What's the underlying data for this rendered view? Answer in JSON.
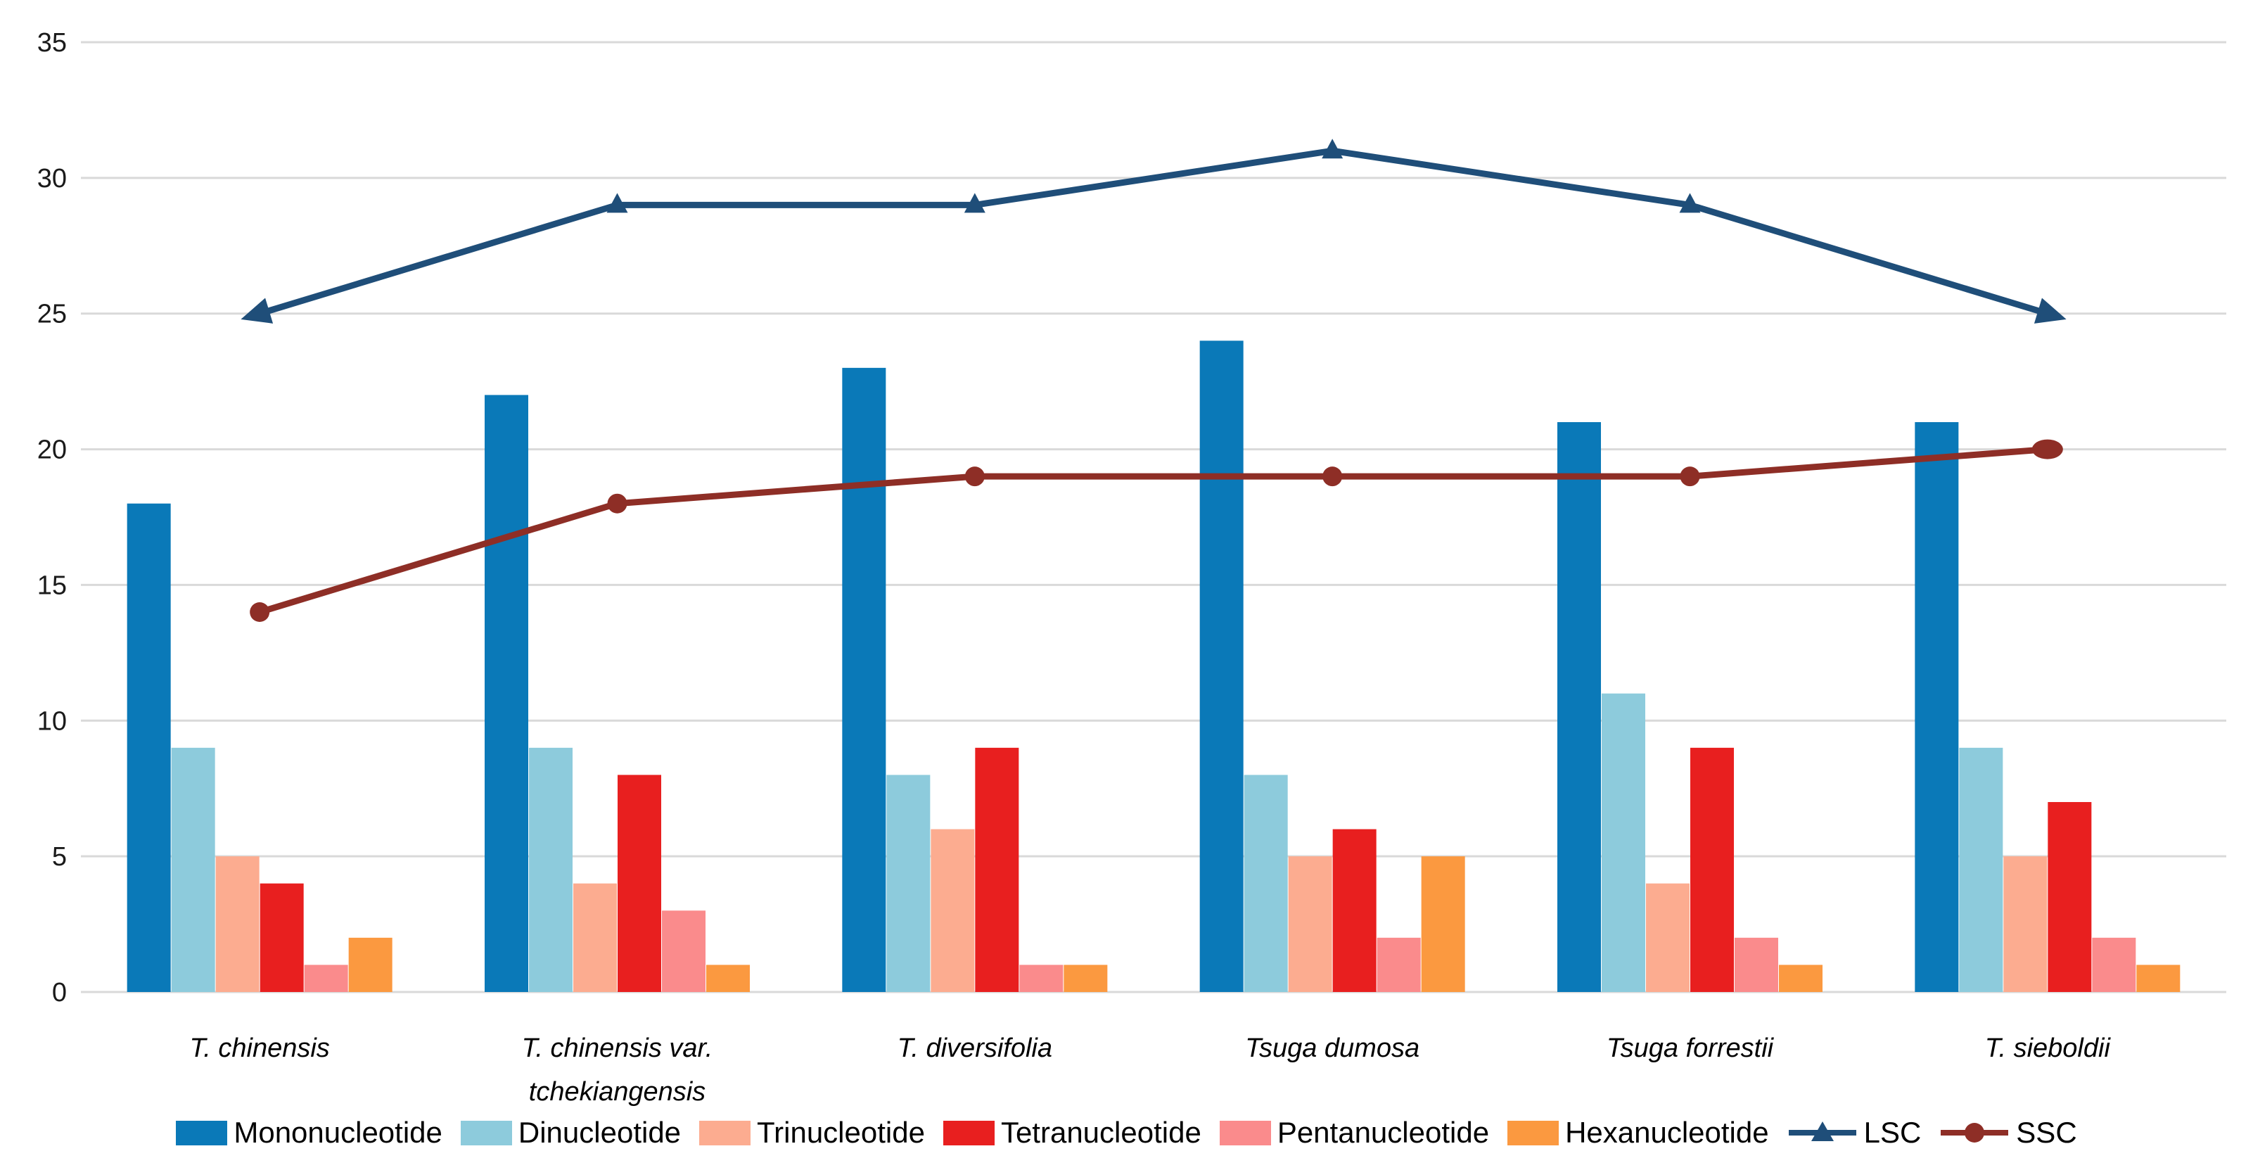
{
  "chart_data": {
    "type": "bar",
    "title": "",
    "xlabel": "",
    "ylabel": "",
    "categories": [
      "T. chinensis",
      "T. chinensis var.\ntchekiangensis",
      "T. diversifolia",
      "Tsuga dumosa",
      "Tsuga forrestii",
      "T. sieboldii"
    ],
    "bar_series": [
      {
        "name": "Mononucleotide",
        "color": "#0A79B8",
        "values": [
          18,
          22,
          23,
          24,
          21,
          21
        ]
      },
      {
        "name": "Dinucleotide",
        "color": "#8DCBDC",
        "values": [
          9,
          9,
          8,
          8,
          11,
          9
        ]
      },
      {
        "name": "Trinucleotide",
        "color": "#FCAC90",
        "values": [
          5,
          4,
          6,
          5,
          4,
          5
        ]
      },
      {
        "name": "Tetranucleotide",
        "color": "#E81F1F",
        "values": [
          4,
          8,
          9,
          6,
          9,
          7
        ]
      },
      {
        "name": "Pentanucleotide",
        "color": "#FA8B8C",
        "values": [
          1,
          3,
          1,
          2,
          2,
          2
        ]
      },
      {
        "name": "Hexanucleotide",
        "color": "#FB9940",
        "values": [
          2,
          1,
          1,
          5,
          1,
          1
        ]
      }
    ],
    "line_series": [
      {
        "name": "LSC",
        "color": "#1F4E79",
        "marker": "triangle",
        "end_caps": "arrow",
        "values": [
          25,
          29,
          29,
          31,
          29,
          25
        ]
      },
      {
        "name": "SSC",
        "color": "#8E2E26",
        "marker": "circle",
        "end_caps": "ellipse",
        "values": [
          14,
          18,
          19,
          19,
          19,
          20
        ]
      }
    ],
    "y_ticks": [
      0,
      5,
      10,
      15,
      20,
      25,
      30,
      35
    ],
    "ylim": [
      0,
      35
    ],
    "grid": true,
    "gridline_color": "#D9D9D9",
    "tick_label_color": "#1a1a1a",
    "legend_position": "bottom"
  }
}
